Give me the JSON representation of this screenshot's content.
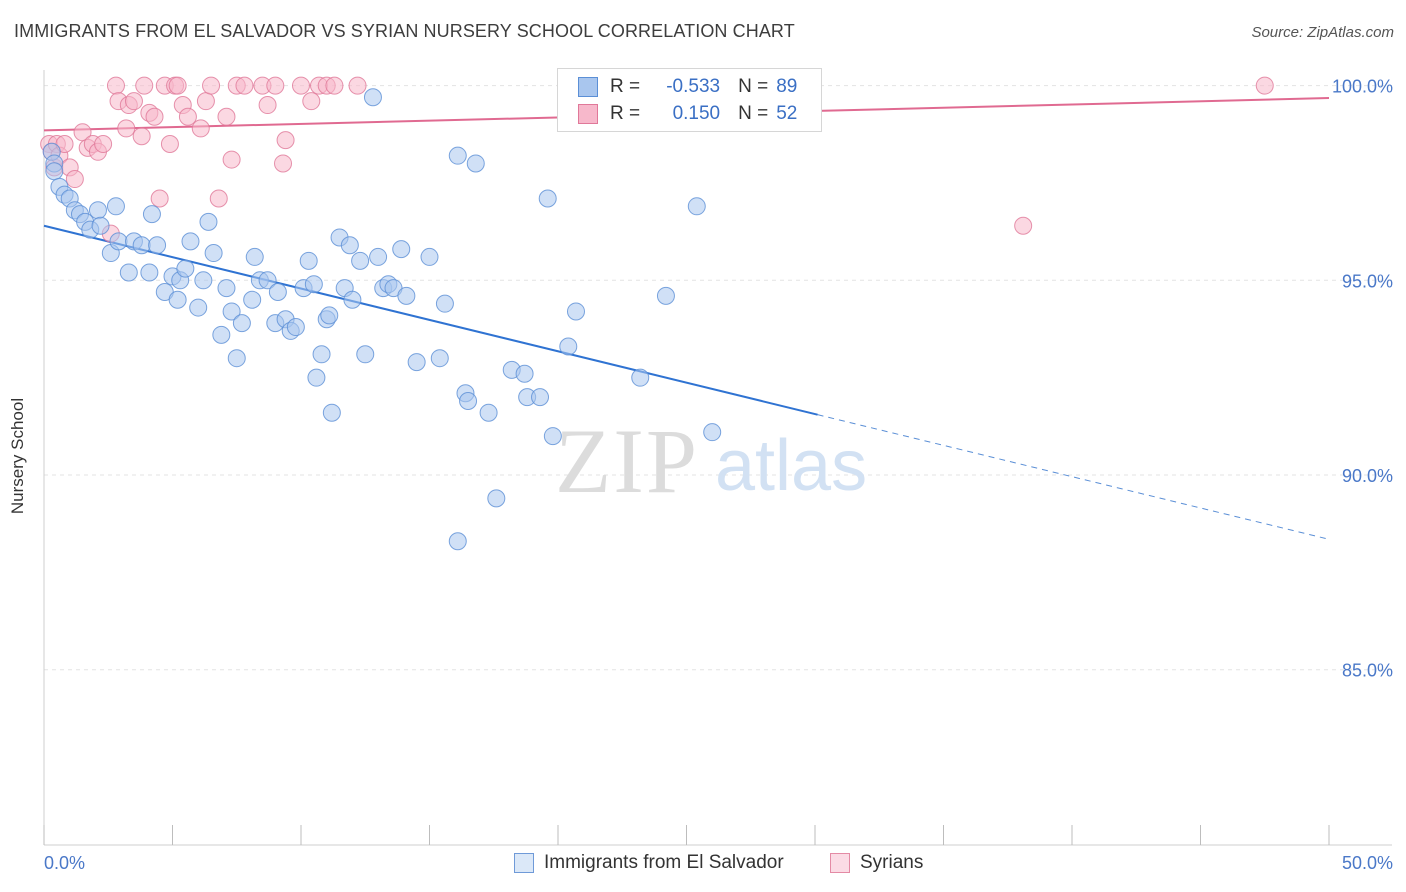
{
  "header": {
    "title": "IMMIGRANTS FROM EL SALVADOR VS SYRIAN NURSERY SCHOOL CORRELATION CHART",
    "source": "Source: ZipAtlas.com"
  },
  "watermark": {
    "zip": "ZIP",
    "atlas": "atlas"
  },
  "legend": {
    "rows": [
      {
        "r_label": "R =",
        "r_value": "-0.533",
        "n_label": "N =",
        "n_value": "89",
        "color": "#a9c6ee",
        "border": "#5b8fd6"
      },
      {
        "r_label": "R =",
        "r_value": "0.150",
        "n_label": "N =",
        "n_value": "52",
        "color": "#f7b8cb",
        "border": "#e07899"
      }
    ]
  },
  "bottom_legend": {
    "items": [
      {
        "label": "Immigrants from El Salvador",
        "color": "#a9c6ee",
        "border": "#5b8fd6"
      },
      {
        "label": "Syrians",
        "color": "#f7b8cb",
        "border": "#e07899"
      }
    ]
  },
  "chart_data": {
    "type": "scatter",
    "title": "IMMIGRANTS FROM EL SALVADOR VS SYRIAN NURSERY SCHOOL CORRELATION CHART",
    "xlabel": "",
    "ylabel": "Nursery School",
    "xlim": [
      0,
      50
    ],
    "ylim": [
      80.5,
      100.4
    ],
    "x_tick_labels": [
      "0.0%",
      "50.0%"
    ],
    "y_ticks": [
      85,
      90,
      95,
      100
    ],
    "y_tick_labels": [
      "85.0%",
      "90.0%",
      "95.0%",
      "100.0%"
    ],
    "grid": true,
    "legend_position": "top-center",
    "series": [
      {
        "name": "Immigrants from El Salvador",
        "color": "#a9c6ee",
        "stroke": "#5b8fd6",
        "trend": {
          "x_start": 0,
          "y_start": 96.4,
          "x_solid_end": 30.1,
          "y_solid_end": 91.55,
          "x_end": 50,
          "y_end": 88.35
        },
        "points": [
          [
            0.3,
            98.3
          ],
          [
            0.4,
            98.0
          ],
          [
            0.4,
            97.8
          ],
          [
            0.6,
            97.4
          ],
          [
            0.8,
            97.2
          ],
          [
            1.0,
            97.1
          ],
          [
            1.2,
            96.8
          ],
          [
            1.4,
            96.7
          ],
          [
            1.6,
            96.5
          ],
          [
            1.8,
            96.3
          ],
          [
            2.1,
            96.8
          ],
          [
            2.2,
            96.4
          ],
          [
            2.8,
            96.9
          ],
          [
            2.6,
            95.7
          ],
          [
            2.9,
            96.0
          ],
          [
            3.3,
            95.2
          ],
          [
            3.5,
            96.0
          ],
          [
            3.8,
            95.9
          ],
          [
            4.1,
            95.2
          ],
          [
            4.2,
            96.7
          ],
          [
            4.4,
            95.9
          ],
          [
            4.7,
            94.7
          ],
          [
            5.0,
            95.1
          ],
          [
            5.2,
            94.5
          ],
          [
            5.3,
            95.0
          ],
          [
            5.5,
            95.3
          ],
          [
            5.7,
            96.0
          ],
          [
            6.0,
            94.3
          ],
          [
            6.2,
            95.0
          ],
          [
            6.4,
            96.5
          ],
          [
            6.6,
            95.7
          ],
          [
            6.9,
            93.6
          ],
          [
            7.1,
            94.8
          ],
          [
            7.3,
            94.2
          ],
          [
            7.5,
            93.0
          ],
          [
            7.7,
            93.9
          ],
          [
            8.1,
            94.5
          ],
          [
            8.2,
            95.6
          ],
          [
            8.4,
            95.0
          ],
          [
            8.7,
            95.0
          ],
          [
            9.0,
            93.9
          ],
          [
            9.1,
            94.7
          ],
          [
            9.4,
            94.0
          ],
          [
            9.6,
            93.7
          ],
          [
            9.8,
            93.8
          ],
          [
            10.1,
            94.8
          ],
          [
            10.3,
            95.5
          ],
          [
            10.5,
            94.9
          ],
          [
            10.6,
            92.5
          ],
          [
            10.8,
            93.1
          ],
          [
            11.0,
            94.0
          ],
          [
            11.2,
            91.6
          ],
          [
            11.5,
            96.1
          ],
          [
            11.7,
            94.8
          ],
          [
            11.9,
            95.9
          ],
          [
            12.0,
            94.5
          ],
          [
            12.3,
            95.5
          ],
          [
            12.5,
            93.1
          ],
          [
            12.8,
            99.7
          ],
          [
            13.0,
            95.6
          ],
          [
            13.2,
            94.8
          ],
          [
            13.4,
            94.9
          ],
          [
            13.6,
            94.8
          ],
          [
            13.9,
            95.8
          ],
          [
            14.1,
            94.6
          ],
          [
            14.5,
            92.9
          ],
          [
            15.0,
            95.6
          ],
          [
            15.4,
            93.0
          ],
          [
            15.6,
            94.4
          ],
          [
            16.1,
            98.2
          ],
          [
            16.4,
            92.1
          ],
          [
            16.5,
            91.9
          ],
          [
            16.8,
            98.0
          ],
          [
            17.3,
            91.6
          ],
          [
            17.6,
            89.4
          ],
          [
            18.2,
            92.7
          ],
          [
            18.7,
            92.6
          ],
          [
            18.8,
            92.0
          ],
          [
            19.3,
            92.0
          ],
          [
            19.6,
            97.1
          ],
          [
            19.8,
            91.0
          ],
          [
            20.4,
            93.3
          ],
          [
            20.7,
            94.2
          ],
          [
            23.2,
            92.5
          ],
          [
            24.2,
            94.6
          ],
          [
            25.4,
            96.9
          ],
          [
            26.0,
            91.1
          ],
          [
            16.1,
            88.3
          ],
          [
            11.1,
            94.1
          ]
        ]
      },
      {
        "name": "Syrians",
        "color": "#f7b8cb",
        "stroke": "#e07899",
        "trend": {
          "x_start": 0,
          "y_start": 98.85,
          "x_end": 50,
          "y_end": 99.68
        },
        "points": [
          [
            0.2,
            98.5
          ],
          [
            0.3,
            98.3
          ],
          [
            0.4,
            97.9
          ],
          [
            0.5,
            98.5
          ],
          [
            0.6,
            98.2
          ],
          [
            0.8,
            98.5
          ],
          [
            1.0,
            97.9
          ],
          [
            1.2,
            97.6
          ],
          [
            1.5,
            98.8
          ],
          [
            1.7,
            98.4
          ],
          [
            1.9,
            98.5
          ],
          [
            2.1,
            98.3
          ],
          [
            2.3,
            98.5
          ],
          [
            2.6,
            96.2
          ],
          [
            2.8,
            100.0
          ],
          [
            2.9,
            99.6
          ],
          [
            3.2,
            98.9
          ],
          [
            3.3,
            99.5
          ],
          [
            3.5,
            99.6
          ],
          [
            3.8,
            98.7
          ],
          [
            3.9,
            100.0
          ],
          [
            4.1,
            99.3
          ],
          [
            4.3,
            99.2
          ],
          [
            4.5,
            97.1
          ],
          [
            4.7,
            100.0
          ],
          [
            4.9,
            98.5
          ],
          [
            5.1,
            100.0
          ],
          [
            5.2,
            100.0
          ],
          [
            5.4,
            99.5
          ],
          [
            5.6,
            99.2
          ],
          [
            6.1,
            98.9
          ],
          [
            6.3,
            99.6
          ],
          [
            6.5,
            100.0
          ],
          [
            6.8,
            97.1
          ],
          [
            7.1,
            99.2
          ],
          [
            7.3,
            98.1
          ],
          [
            7.5,
            100.0
          ],
          [
            7.8,
            100.0
          ],
          [
            8.5,
            100.0
          ],
          [
            8.7,
            99.5
          ],
          [
            9.0,
            100.0
          ],
          [
            9.3,
            98.0
          ],
          [
            9.4,
            98.6
          ],
          [
            10.0,
            100.0
          ],
          [
            10.4,
            99.6
          ],
          [
            10.7,
            100.0
          ],
          [
            11.0,
            100.0
          ],
          [
            11.3,
            100.0
          ],
          [
            28.0,
            100.0
          ],
          [
            38.1,
            96.4
          ],
          [
            47.5,
            100.0
          ],
          [
            12.2,
            100.0
          ]
        ]
      }
    ]
  }
}
